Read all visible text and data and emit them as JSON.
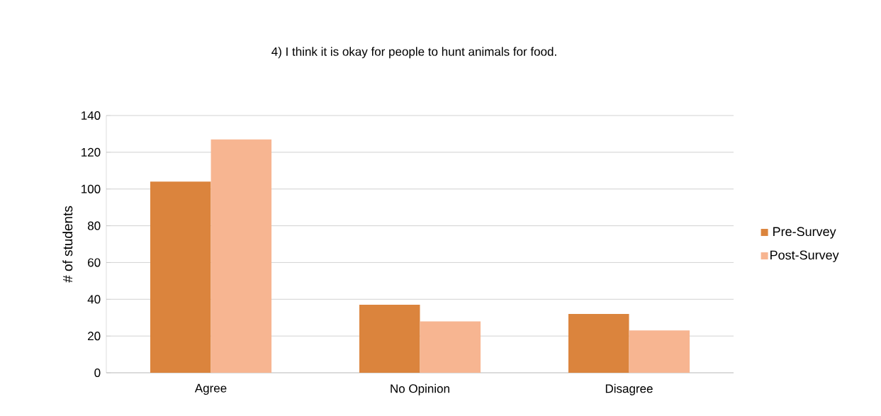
{
  "chart_data": {
    "type": "bar",
    "title": "4) I think it is okay for people to hunt animals for food.",
    "ylabel": "# of students",
    "categories": [
      "Agree",
      "No Opinion",
      "Disagree"
    ],
    "series": [
      {
        "name": "Pre-Survey",
        "color": "#db843d",
        "values": [
          104,
          37,
          32
        ]
      },
      {
        "name": "Post-Survey",
        "color": "#f7b591",
        "values": [
          127,
          28,
          23
        ]
      }
    ],
    "ylim": [
      0,
      140
    ],
    "yticks": [
      0,
      20,
      40,
      60,
      80,
      100,
      120,
      140
    ],
    "grid": "y",
    "legend": "right"
  }
}
